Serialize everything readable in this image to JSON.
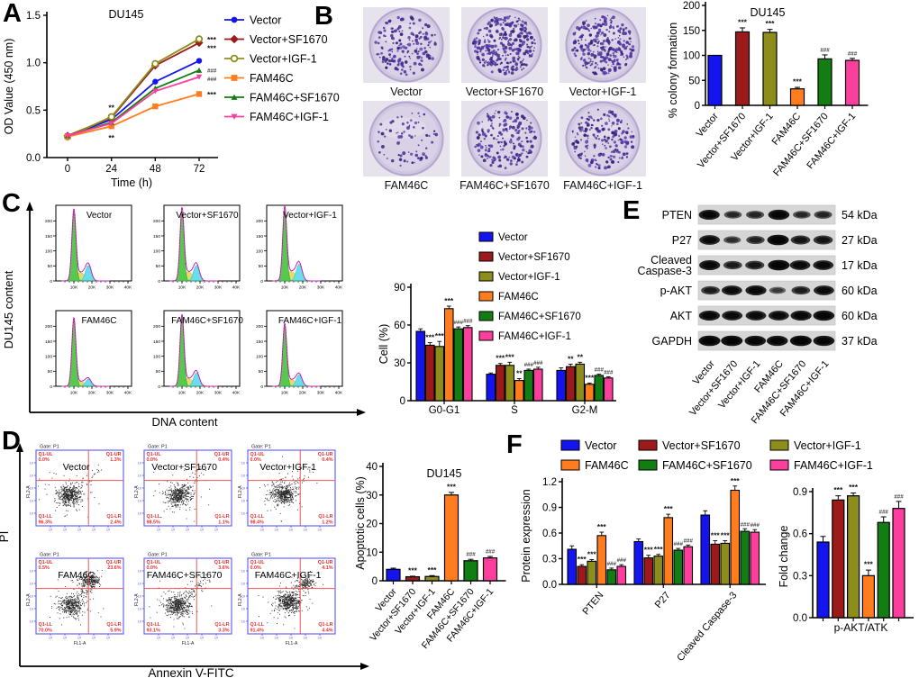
{
  "panels": {
    "A": "A",
    "B": "B",
    "C": "C",
    "D": "D",
    "E": "E",
    "F": "F"
  },
  "groups": [
    "Vector",
    "Vector+SF1670",
    "Vector+IGF-1",
    "FAM46C",
    "FAM46C+SF1670",
    "FAM46C+IGF-1"
  ],
  "group_colors": [
    "#1414f0",
    "#9c1a1a",
    "#8d8d1b",
    "#ff7d1f",
    "#127d12",
    "#fc3e9d"
  ],
  "chart_data": [
    {
      "id": "A_proliferation",
      "type": "line",
      "title": "DU145",
      "xlabel": "Time (h)",
      "ylabel": "OD Value (450 nm)",
      "x": [
        0,
        24,
        48,
        72
      ],
      "xtick_labels": [
        "0",
        "24",
        "48",
        "72"
      ],
      "ylim": [
        0,
        1.5
      ],
      "yticks": [
        0,
        0.5,
        1.0,
        1.5
      ],
      "ytick_labels": [
        "0.0",
        "0.5",
        "1.0",
        "1.5"
      ],
      "series": [
        {
          "name": "Vector",
          "marker": "circle",
          "values": [
            0.23,
            0.4,
            0.8,
            1.02
          ]
        },
        {
          "name": "Vector+SF1670",
          "marker": "diamond",
          "values": [
            0.23,
            0.42,
            0.97,
            1.21
          ]
        },
        {
          "name": "Vector+IGF-1",
          "marker": "circle-open",
          "values": [
            0.22,
            0.43,
            0.99,
            1.25
          ]
        },
        {
          "name": "FAM46C",
          "marker": "square",
          "values": [
            0.22,
            0.33,
            0.54,
            0.67
          ]
        },
        {
          "name": "FAM46C+SF1670",
          "marker": "triangle",
          "values": [
            0.23,
            0.37,
            0.73,
            0.92
          ]
        },
        {
          "name": "FAM46C+IGF-1",
          "marker": "triangle-down",
          "values": [
            0.23,
            0.36,
            0.7,
            0.85
          ]
        }
      ],
      "annotations": [
        {
          "text": "**",
          "t": 24,
          "v": 0.43,
          "pos": "above"
        },
        {
          "text": "**",
          "t": 24,
          "v": 0.33,
          "pos": "below"
        },
        {
          "text": "***",
          "t": 72,
          "v": 1.25,
          "pos": "right"
        },
        {
          "text": "***",
          "t": 72,
          "v": 1.16,
          "pos": "right"
        },
        {
          "text": "###",
          "t": 72,
          "v": 0.93,
          "pos": "right"
        },
        {
          "text": "###",
          "t": 72,
          "v": 0.84,
          "pos": "right"
        },
        {
          "text": "***",
          "t": 72,
          "v": 0.67,
          "pos": "right"
        }
      ]
    },
    {
      "id": "B_colony",
      "type": "bar",
      "title": "DU145",
      "ylabel": "% colony formation",
      "ylim": [
        0,
        200
      ],
      "yticks": [
        0,
        50,
        100,
        150,
        200
      ],
      "ytick_labels": [
        "0",
        "50",
        "100",
        "150",
        "200"
      ],
      "values": [
        100,
        147,
        146,
        33,
        93,
        90
      ],
      "errors": [
        0,
        8,
        6,
        3,
        8,
        4
      ],
      "annotations": [
        null,
        "***",
        "***",
        "***",
        "###",
        "###"
      ]
    },
    {
      "id": "C_cellcycle",
      "type": "grouped_bar",
      "ylabel": "Cell (%)",
      "ylim": [
        0,
        90
      ],
      "yticks": [
        0,
        30,
        60,
        90
      ],
      "ytick_labels": [
        "0",
        "30",
        "60",
        "90"
      ],
      "categories": [
        "G0-G1",
        "S",
        "G2-M"
      ],
      "series": [
        {
          "name": "Vector",
          "values": [
            55,
            21,
            24
          ],
          "errors": [
            2,
            1,
            2
          ],
          "annotations": [
            null,
            null,
            null
          ]
        },
        {
          "name": "Vector+SF1670",
          "values": [
            44,
            28,
            27
          ],
          "errors": [
            2,
            1.5,
            2
          ],
          "annotations": [
            "***",
            "***",
            "**"
          ]
        },
        {
          "name": "Vector+IGF-1",
          "values": [
            43,
            28,
            29
          ],
          "errors": [
            4,
            2.5,
            1.5
          ],
          "annotations": [
            "***",
            "***",
            "**"
          ]
        },
        {
          "name": "FAM46C",
          "values": [
            73,
            16,
            13
          ],
          "errors": [
            2,
            1.5,
            1
          ],
          "annotations": [
            "***",
            "**",
            "***"
          ]
        },
        {
          "name": "FAM46C+SF1670",
          "values": [
            57,
            24,
            20
          ],
          "errors": [
            1.5,
            1,
            1
          ],
          "annotations": [
            "###",
            "###",
            "###"
          ]
        },
        {
          "name": "FAM46C+IGF-1",
          "values": [
            58,
            25,
            18
          ],
          "errors": [
            1.5,
            1.5,
            1
          ],
          "annotations": [
            "###",
            "###",
            "###"
          ]
        }
      ]
    },
    {
      "id": "D_apoptosis",
      "type": "bar",
      "title": "DU145",
      "ylabel": "Apoptotic cells (%)",
      "ylim": [
        0,
        40
      ],
      "yticks": [
        0,
        10,
        20,
        30,
        40
      ],
      "ytick_labels": [
        "0",
        "10",
        "20",
        "30",
        "40"
      ],
      "values": [
        4,
        1.4,
        1.5,
        30,
        7,
        8
      ],
      "errors": [
        0.4,
        0.2,
        0.3,
        0.9,
        0.5,
        0.5
      ],
      "annotations": [
        null,
        "***",
        "***",
        "***",
        "###",
        "###"
      ]
    },
    {
      "id": "F_protein",
      "type": "grouped_bar",
      "ylabel": "Protein expression",
      "ylim": [
        0,
        1.2
      ],
      "yticks": [
        0,
        0.3,
        0.6,
        0.9,
        1.2
      ],
      "ytick_labels": [
        "0.0",
        "0.3",
        "0.6",
        "0.9",
        "1.2"
      ],
      "categories": [
        "PTEN",
        "P27",
        "Cleaved Caspase-3"
      ],
      "series": [
        {
          "name": "Vector",
          "values": [
            0.41,
            0.5,
            0.81
          ],
          "errors": [
            0.04,
            0.03,
            0.05
          ],
          "annotations": [
            null,
            null,
            null
          ]
        },
        {
          "name": "Vector+SF1670",
          "values": [
            0.21,
            0.31,
            0.47
          ],
          "errors": [
            0.02,
            0.03,
            0.04
          ],
          "annotations": [
            "***",
            "***",
            "***"
          ]
        },
        {
          "name": "Vector+IGF-1",
          "values": [
            0.27,
            0.33,
            0.48
          ],
          "errors": [
            0.02,
            0.02,
            0.03
          ],
          "annotations": [
            "***",
            "***",
            "***"
          ]
        },
        {
          "name": "FAM46C",
          "values": [
            0.57,
            0.78,
            1.1
          ],
          "errors": [
            0.04,
            0.04,
            0.05
          ],
          "annotations": [
            "***",
            "***",
            "***"
          ]
        },
        {
          "name": "FAM46C+SF1670",
          "values": [
            0.17,
            0.4,
            0.62
          ],
          "errors": [
            0.02,
            0.02,
            0.03
          ],
          "annotations": [
            "###",
            "###",
            "###"
          ]
        },
        {
          "name": "FAM46C+IGF-1",
          "values": [
            0.21,
            0.44,
            0.61
          ],
          "errors": [
            0.02,
            0.02,
            0.03
          ],
          "annotations": [
            "###",
            "###",
            "###"
          ]
        }
      ]
    },
    {
      "id": "F_fold",
      "type": "bar",
      "ylabel": "Fold change",
      "category_label": "p-AKT/ATK",
      "ylim": [
        0,
        0.9
      ],
      "yticks": [
        0,
        0.3,
        0.6,
        0.9
      ],
      "ytick_labels": [
        "0.0",
        "0.3",
        "0.6",
        "0.9"
      ],
      "values": [
        0.54,
        0.84,
        0.87,
        0.3,
        0.68,
        0.78
      ],
      "errors": [
        0.04,
        0.03,
        0.02,
        0.04,
        0.04,
        0.05
      ],
      "annotations": [
        null,
        "***",
        "***",
        "***",
        "###",
        "###"
      ]
    }
  ],
  "colony_plates": {
    "plates": [
      {
        "label": "Vector",
        "density": 170
      },
      {
        "label": "Vector+SF1670",
        "density": 310
      },
      {
        "label": "Vector+IGF-1",
        "density": 290
      },
      {
        "label": "FAM46C",
        "density": 70
      },
      {
        "label": "FAM46C+SF1670",
        "density": 185
      },
      {
        "label": "FAM46C+IGF-1",
        "density": 195
      }
    ]
  },
  "flow_cycle": {
    "ylabel_outer": "DU145 content",
    "xlabel_outer": "DNA content",
    "ytick_labels": [
      "0",
      "50",
      "100",
      "150",
      "200"
    ],
    "yticks": [
      0,
      50,
      100,
      150,
      200
    ],
    "xtick_labels": [
      "10K",
      "20K",
      "30K",
      "40K"
    ],
    "xticks": [
      10,
      20,
      30,
      40
    ],
    "plots": [
      {
        "label": "Vector",
        "g1": 228,
        "s": 28,
        "g2": 52
      },
      {
        "label": "Vector+SF1670",
        "g1": 232,
        "s": 30,
        "g2": 52
      },
      {
        "label": "Vector+IGF-1",
        "g1": 235,
        "s": 32,
        "g2": 56
      },
      {
        "label": "FAM46C",
        "g1": 222,
        "s": 16,
        "g2": 24
      },
      {
        "label": "FAM46C+SF1670",
        "g1": 228,
        "s": 26,
        "g2": 45
      },
      {
        "label": "FAM46C+IGF-1",
        "g1": 200,
        "s": 22,
        "g2": 38
      }
    ]
  },
  "flow_apoptosis": {
    "ylabel_outer": "PI",
    "xlabel_outer": "Annexin V-FITC",
    "gate_label": "Gate: P1",
    "x_axis_label": "FL1-A",
    "y_axis_label": "FL2-A",
    "quadrant_names": {
      "ul": "Q1-UL",
      "ur": "Q1-UR",
      "ll": "Q1-LL",
      "lr": "Q1-LR"
    },
    "plots": [
      {
        "label": "Vector",
        "ul": "0.0%",
        "ur": "1.3%",
        "ll": "96.3%",
        "lr": "2.4%",
        "ur_cluster": 0,
        "diag": 40,
        "mainX": 0.38,
        "mainY": 0.6
      },
      {
        "label": "Vector+SF1670",
        "ul": "0.0%",
        "ur": "0.4%",
        "ll": "98.5%",
        "lr": "1.1%",
        "ur_cluster": 0,
        "diag": 30,
        "mainX": 0.4,
        "mainY": 0.6
      },
      {
        "label": "Vector+IGF-1",
        "ul": "0.0%",
        "ur": "0.4%",
        "ll": "98.4%",
        "lr": "1.2%",
        "ur_cluster": 0,
        "diag": 35,
        "mainX": 0.41,
        "mainY": 0.58
      },
      {
        "label": "FAM46C",
        "ul": "0.5%",
        "ur": "23.6%",
        "ll": "70.0%",
        "lr": "5.9%",
        "ur_cluster": 260,
        "diag": 90,
        "mainX": 0.4,
        "mainY": 0.63
      },
      {
        "label": "FAM46C+SF1670",
        "ul": "0.0%",
        "ur": "3.6%",
        "ll": "93.1%",
        "lr": "3.3%",
        "ur_cluster": 0,
        "diag": 90,
        "mainX": 0.38,
        "mainY": 0.63
      },
      {
        "label": "FAM46C+IGF-1",
        "ul": "0.0%",
        "ur": "4.1%",
        "ll": "91.4%",
        "lr": "4.4%",
        "ur_cluster": 130,
        "diag": 60,
        "mainX": 0.47,
        "mainY": 0.58
      }
    ]
  },
  "western_blot": {
    "rows": [
      {
        "protein": "PTEN",
        "kda": "54 kDa",
        "bands": [
          0.9,
          0.45,
          0.5,
          0.95,
          0.45,
          0.5
        ]
      },
      {
        "protein": "P27",
        "kda": "27 kDa",
        "bands": [
          0.85,
          0.4,
          0.55,
          1.0,
          0.7,
          0.7
        ]
      },
      {
        "protein": "Cleaved Caspase-3",
        "kda": "17 kDa",
        "bands": [
          0.9,
          0.6,
          0.65,
          1.0,
          0.85,
          0.85
        ]
      },
      {
        "protein": "p-AKT",
        "kda": "60 kDa",
        "bands": [
          0.6,
          0.85,
          0.9,
          0.3,
          0.6,
          0.85
        ]
      },
      {
        "protein": "AKT",
        "kda": "60 kDa",
        "bands": [
          0.9,
          0.85,
          0.85,
          0.85,
          0.9,
          0.95
        ]
      },
      {
        "protein": "GAPDH",
        "kda": "37 kDa",
        "bands": [
          1.0,
          1.0,
          0.95,
          0.95,
          1.0,
          0.95
        ]
      }
    ]
  }
}
